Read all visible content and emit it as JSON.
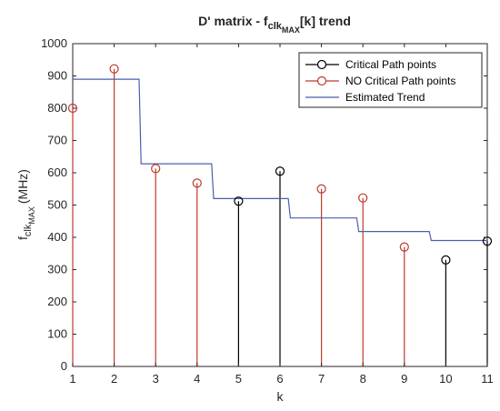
{
  "chart_data": {
    "type": "stem",
    "title": {
      "main": "D' matrix - f",
      "sub1": "clk",
      "sub2": "MAX",
      "tail": "[k] trend"
    },
    "xlabel": "k",
    "ylabel": {
      "main": "f",
      "sub1": "clk",
      "sub2": "MAX",
      "tail": "(MHz)"
    },
    "xlim": [
      1,
      11
    ],
    "ylim": [
      0,
      1000
    ],
    "xticks": [
      1,
      2,
      3,
      4,
      5,
      6,
      7,
      8,
      9,
      10,
      11
    ],
    "yticks": [
      0,
      100,
      200,
      300,
      400,
      500,
      600,
      700,
      800,
      900,
      1000
    ],
    "grid": false,
    "legend_position": "top-right",
    "series": [
      {
        "name": "Critical Path points",
        "color": "#000000",
        "marker": "circle",
        "points": [
          [
            5,
            512
          ],
          [
            6,
            605
          ],
          [
            10,
            330
          ],
          [
            11,
            388
          ]
        ]
      },
      {
        "name": "NO Critical Path points",
        "color": "#c0392b",
        "marker": "circle",
        "points": [
          [
            1,
            800
          ],
          [
            2,
            922
          ],
          [
            3,
            613
          ],
          [
            4,
            568
          ],
          [
            7,
            550
          ],
          [
            8,
            522
          ],
          [
            9,
            370
          ]
        ]
      },
      {
        "name": "Estimated Trend",
        "color": "#4a5fb0",
        "marker": "none",
        "steps": [
          [
            1,
            890
          ],
          [
            2.6,
            890
          ],
          [
            2.65,
            628
          ],
          [
            4.35,
            628
          ],
          [
            4.4,
            520
          ],
          [
            6.2,
            520
          ],
          [
            6.25,
            460
          ],
          [
            7.85,
            460
          ],
          [
            7.9,
            418
          ],
          [
            9.6,
            418
          ],
          [
            9.65,
            390
          ],
          [
            11,
            390
          ]
        ]
      }
    ]
  }
}
